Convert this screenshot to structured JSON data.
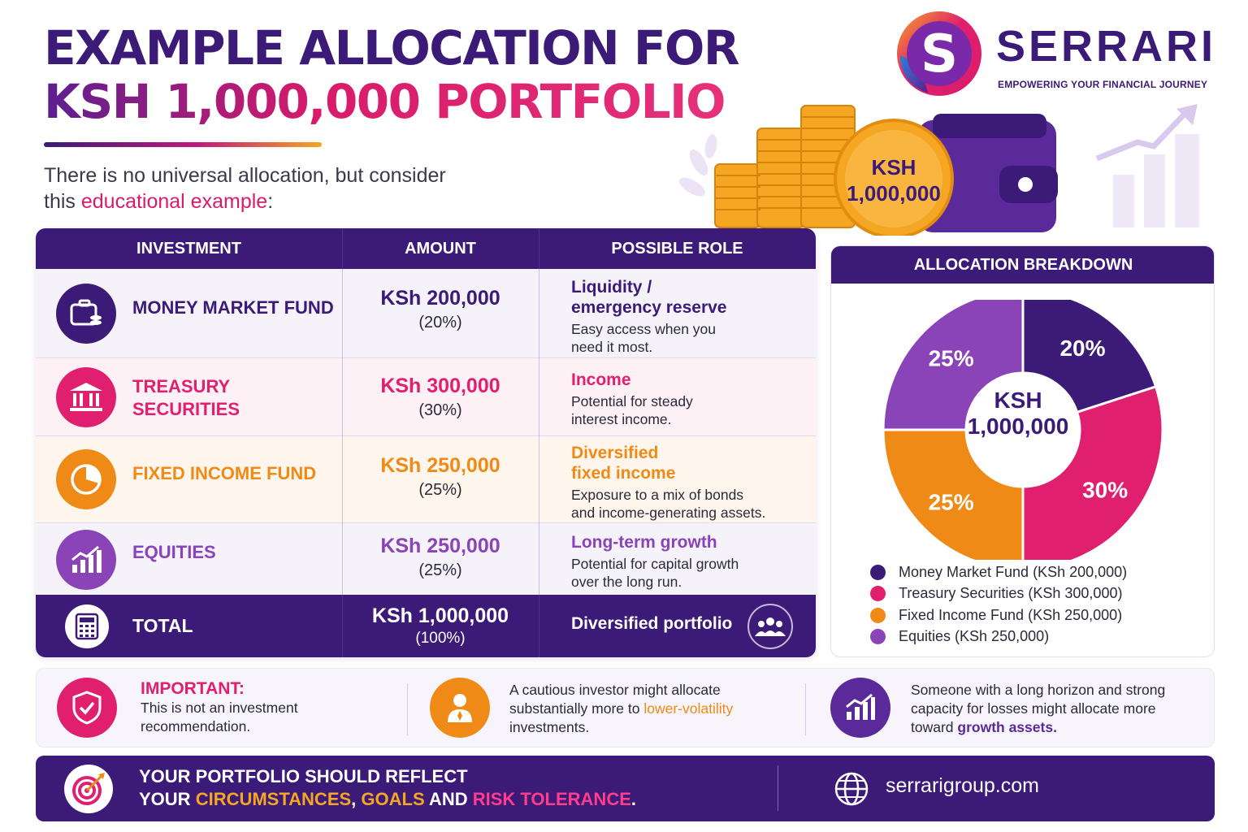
{
  "title": {
    "line1": "EXAMPLE ALLOCATION FOR",
    "line2": "KSH 1,000,000 PORTFOLIO"
  },
  "intro": {
    "line1": "There is no universal allocation, but consider",
    "line2_pre": "this ",
    "line2_highlight": "educational example",
    "line2_post": ":"
  },
  "brand": {
    "name": "SERRARI",
    "tagline": "EMPOWERING YOUR FINANCIAL JOURNEY",
    "coin_line1": "KSH",
    "coin_line2": "1,000,000"
  },
  "table": {
    "headers": [
      "INVESTMENT",
      "AMOUNT",
      "POSSIBLE ROLE"
    ],
    "rows": [
      {
        "name": "MONEY MARKET FUND",
        "amount": "KSh 200,000",
        "percent": "(20%)",
        "role_title": "Liquidity / emergency reserve",
        "role_title_l1": "Liquidity /",
        "role_title_l2": "emergency reserve",
        "role_desc_l1": "Easy access when you",
        "role_desc_l2": "need it most.",
        "icon": "wallet-icon"
      },
      {
        "name_l1": "TREASURY",
        "name_l2": "SECURITIES",
        "amount": "KSh 300,000",
        "percent": "(30%)",
        "role_title": "Income",
        "role_desc_l1": "Potential for steady",
        "role_desc_l2": "interest income.",
        "icon": "bank-icon"
      },
      {
        "name": "FIXED INCOME FUND",
        "amount": "KSh 250,000",
        "percent": "(25%)",
        "role_title_l1": "Diversified",
        "role_title_l2": "fixed income",
        "role_desc_l1": "Exposure to a mix of bonds",
        "role_desc_l2": "and income-generating assets.",
        "icon": "pie-chart-icon"
      },
      {
        "name": "EQUITIES",
        "amount": "KSh 250,000",
        "percent": "(25%)",
        "role_title": "Long-term growth",
        "role_desc_l1": "Potential for capital growth",
        "role_desc_l2": "over the long run.",
        "icon": "growth-chart-icon"
      }
    ],
    "total": {
      "label": "TOTAL",
      "amount": "KSh 1,000,000",
      "percent": "(100%)",
      "role": "Diversified portfolio",
      "icon": "calculator-icon",
      "role_icon": "people-icon"
    }
  },
  "allocation": {
    "heading": "ALLOCATION BREAKDOWN",
    "center_l1": "KSH",
    "center_l2": "1,000,000",
    "legend": [
      "Money Market Fund (KSh 200,000)",
      "Treasury Securities (KSh 300,000)",
      "Fixed Income Fund (KSh 250,000)",
      "Equities (KSh 250,000)"
    ]
  },
  "chart_data": {
    "type": "pie",
    "donut": true,
    "categories": [
      "Money Market Fund",
      "Treasury Securities",
      "Fixed Income Fund",
      "Equities"
    ],
    "values": [
      20,
      30,
      25,
      25
    ],
    "labels": [
      "20%",
      "30%",
      "25%",
      "25%"
    ],
    "amounts": [
      200000,
      300000,
      250000,
      250000
    ],
    "colors": [
      "#3b1a78",
      "#e0206e",
      "#f08a16",
      "#8a44b8"
    ],
    "title": "ALLOCATION BREAKDOWN",
    "center_text": "KSH 1,000,000",
    "legend_position": "bottom"
  },
  "info": {
    "important_title": "IMPORTANT:",
    "important_l1": "This is not an investment",
    "important_l2": "recommendation.",
    "cautious_l1": "A cautious investor might allocate",
    "cautious_l2_pre": "substantially more to ",
    "cautious_l2_hl": "lower-volatility",
    "cautious_l3": "investments.",
    "growth_l1": "Someone with a long horizon and strong",
    "growth_l2": "capacity for losses might allocate more",
    "growth_l3_pre": "toward ",
    "growth_l3_hl": "growth assets."
  },
  "banner": {
    "line1": "YOUR PORTFOLIO SHOULD REFLECT",
    "line2_pre": "YOUR ",
    "w1": "CIRCUMSTANCES",
    "sep1": ", ",
    "w2": "GOALS",
    "and": " AND ",
    "w3": "RISK TOLERANCE",
    "end": ".",
    "url": "serrarigroup.com"
  },
  "colors": {
    "purple": "#3b1a78",
    "magenta": "#e0206e",
    "orange": "#f08a16",
    "violet": "#8a44b8",
    "gold": "#f5a623"
  }
}
